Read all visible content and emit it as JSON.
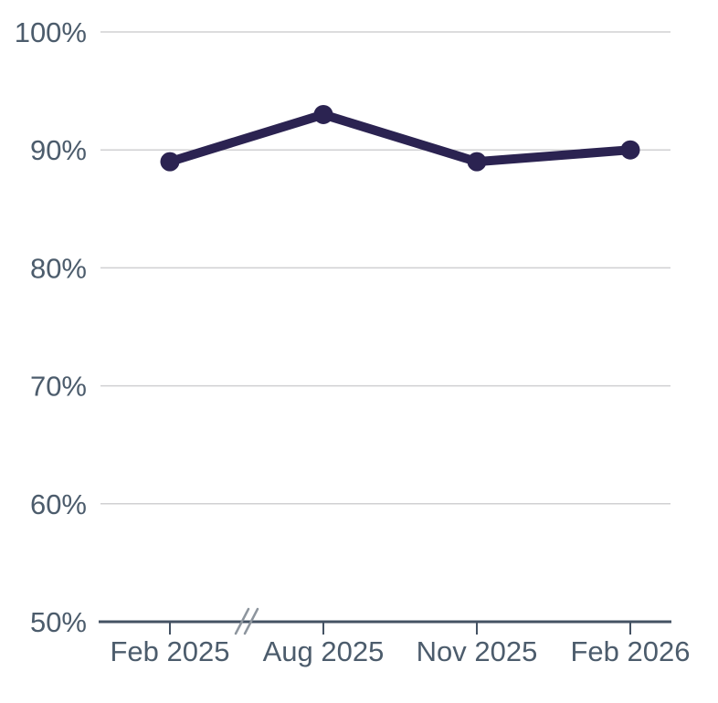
{
  "chart_data": {
    "type": "line",
    "title": "",
    "xlabel": "",
    "ylabel": "",
    "categories": [
      "Feb 2025",
      "Aug 2025",
      "Nov 2025",
      "Feb 2026"
    ],
    "values": [
      89,
      93,
      89,
      90
    ],
    "ylim": [
      50,
      100
    ],
    "yticks": [
      50,
      60,
      70,
      80,
      90,
      100
    ],
    "ytick_labels": [
      "50%",
      "60%",
      "70%",
      "80%",
      "90%",
      "100%"
    ],
    "grid": true,
    "legend": false,
    "axis_break": {
      "after_category": "Feb 2025",
      "before_category": "Aug 2025",
      "symbol": "//"
    },
    "colors": {
      "line": "#2b2351",
      "marker": "#2b2351",
      "axis": "#445263",
      "text": "#4c5c6c",
      "gridline": "#d0d0d2",
      "break_symbol": "#8d959e",
      "background": "#ffffff"
    }
  }
}
